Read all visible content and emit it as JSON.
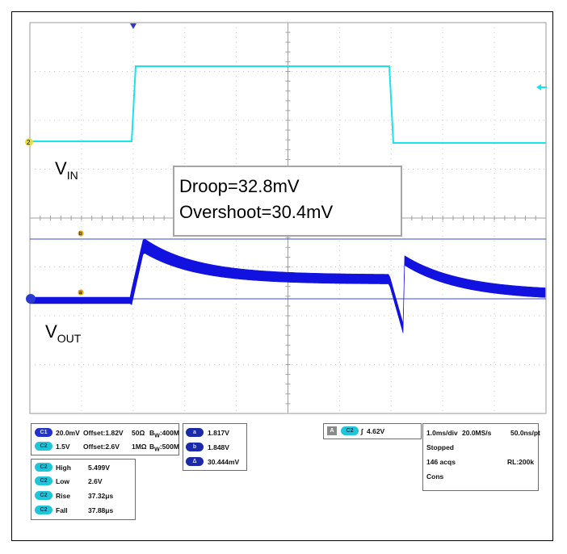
{
  "labels": {
    "vin_main": "V",
    "vin_sub": "IN",
    "vout_main": "V",
    "vout_sub": "OUT"
  },
  "annotation": {
    "line1": "Droop=32.8mV",
    "line2": "Overshoot=30.4mV"
  },
  "markers": {
    "ch2": "2",
    "cursor_a": "a",
    "cursor_b": "b"
  },
  "channel_settings": [
    {
      "tag": "C1",
      "scale": "20.0mV",
      "offset": "Offset:1.82V",
      "coupling": "50Ω",
      "bw_prefix": "B",
      "bw_sub": "W",
      "bw_value": ":400M"
    },
    {
      "tag": "C2",
      "scale": "1.5V",
      "offset": "Offset:2.6V",
      "coupling": "1MΩ",
      "bw_prefix": "B",
      "bw_sub": "W",
      "bw_value": ":500M"
    }
  ],
  "cursor_readouts": [
    {
      "tag": "a",
      "value": "1.817V"
    },
    {
      "tag": "b",
      "value": "1.848V"
    },
    {
      "tag": "Δ",
      "value": "30.444mV"
    }
  ],
  "trigger": {
    "source_letter": "A",
    "tag": "C2",
    "slope": "∫",
    "level": "4.62V"
  },
  "acquisition": {
    "timebase": "1.0ms/div",
    "sample_rate": "20.0MS/s",
    "resolution": "50.0ns/pt",
    "state": "Stopped",
    "acqs": "146 acqs",
    "record_length": "RL:200k",
    "mode": "Cons"
  },
  "measurements": [
    {
      "tag": "C2",
      "name": "High",
      "value": "5.499V"
    },
    {
      "tag": "C2",
      "name": "Low",
      "value": "2.6V"
    },
    {
      "tag": "C2",
      "name": "Rise",
      "value": "37.32μs"
    },
    {
      "tag": "C2",
      "name": "Fall",
      "value": "37.88μs"
    }
  ],
  "colors": {
    "ch2_trace": "#19e3ef",
    "ch1_trace": "#1212e0",
    "cursor_line": "#3a4bd8",
    "grid": "#c9c9c9",
    "marker_orange": "#e0a000"
  }
}
